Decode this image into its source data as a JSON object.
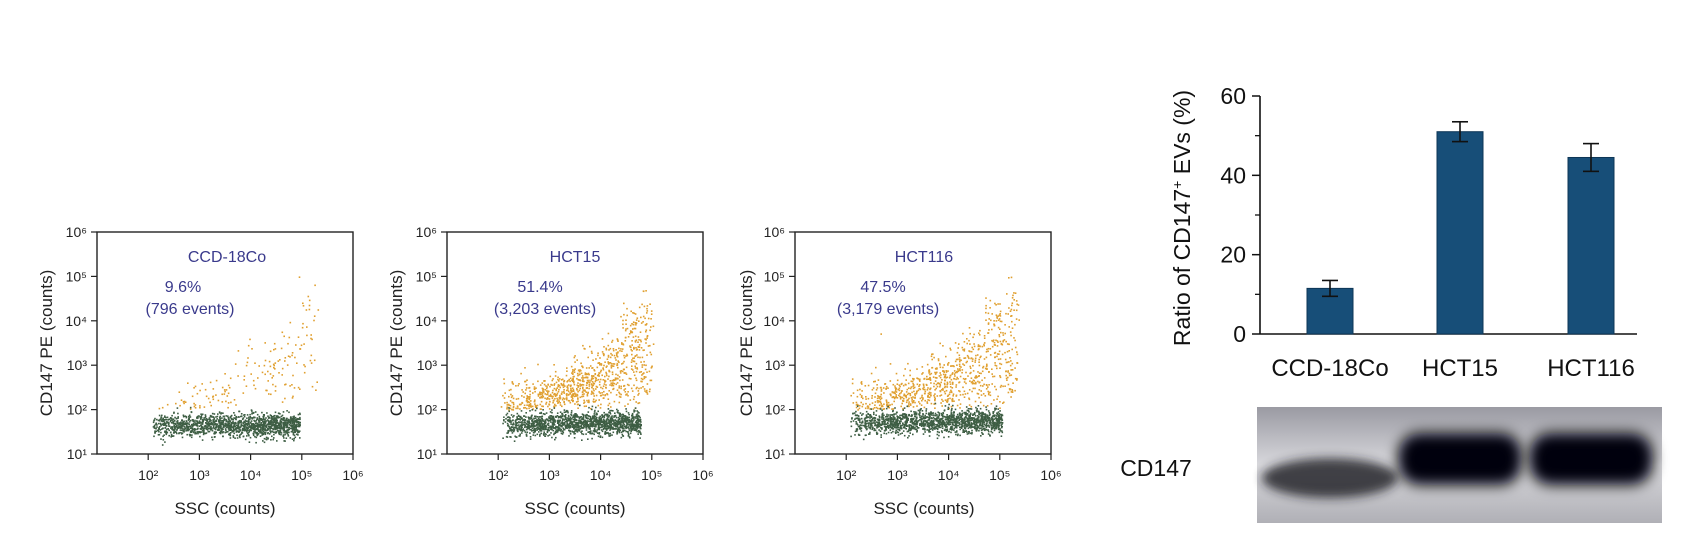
{
  "chart_data": [
    {
      "type": "scatter",
      "title": "CCD-18Co",
      "xlabel": "SSC (counts)",
      "ylabel": "CD147 PE (counts)",
      "xscale": "log",
      "yscale": "log",
      "xlim": [
        10,
        1000000
      ],
      "ylim": [
        10,
        1000000
      ],
      "x_ticks": [
        "10²",
        "10³",
        "10⁴",
        "10⁵",
        "10⁶"
      ],
      "y_ticks": [
        "10¹",
        "10²",
        "10³",
        "10⁴",
        "10⁵",
        "10⁶"
      ],
      "percent_label": "9.6%",
      "events_label": "(796 events)",
      "colors": {
        "positive": "#e0a030",
        "negative": "#3e5e44",
        "label": "#3a3a8c"
      },
      "populations": {
        "negative": {
          "x_range": [
            120,
            90000
          ],
          "y_center": 45
        },
        "positive": {
          "x_range": [
            150,
            200000
          ],
          "y_range": [
            100,
            100000
          ],
          "fraction": 0.096
        }
      }
    },
    {
      "type": "scatter",
      "title": "HCT15",
      "xlabel": "SSC (counts)",
      "ylabel": "CD147 PE (counts)",
      "xscale": "log",
      "yscale": "log",
      "xlim": [
        10,
        1000000
      ],
      "ylim": [
        10,
        1000000
      ],
      "x_ticks": [
        "10²",
        "10³",
        "10⁴",
        "10⁵",
        "10⁶"
      ],
      "y_ticks": [
        "10¹",
        "10²",
        "10³",
        "10⁴",
        "10⁵",
        "10⁶"
      ],
      "percent_label": "51.4%",
      "events_label": "(3,203 events)",
      "colors": {
        "positive": "#e0a030",
        "negative": "#3e5e44",
        "label": "#3a3a8c"
      },
      "populations": {
        "negative": {
          "x_range": [
            120,
            60000
          ],
          "y_center": 50
        },
        "positive": {
          "x_range": [
            120,
            90000
          ],
          "y_range": [
            100,
            50000
          ],
          "fraction": 0.514
        }
      }
    },
    {
      "type": "scatter",
      "title": "HCT116",
      "xlabel": "SSC (counts)",
      "ylabel": "CD147 PE (counts)",
      "xscale": "log",
      "yscale": "log",
      "xlim": [
        10,
        1000000
      ],
      "ylim": [
        10,
        1000000
      ],
      "x_ticks": [
        "10²",
        "10³",
        "10⁴",
        "10⁵",
        "10⁶"
      ],
      "y_ticks": [
        "10¹",
        "10²",
        "10³",
        "10⁴",
        "10⁵",
        "10⁶"
      ],
      "percent_label": "47.5%",
      "events_label": "(3,179 events)",
      "colors": {
        "positive": "#e0a030",
        "negative": "#3e5e44",
        "label": "#3a3a8c"
      },
      "populations": {
        "negative": {
          "x_range": [
            120,
            110000
          ],
          "y_center": 55
        },
        "positive": {
          "x_range": [
            120,
            200000
          ],
          "y_range": [
            100,
            100000
          ],
          "fraction": 0.475
        }
      }
    },
    {
      "type": "bar",
      "categories": [
        "CCD-18Co",
        "HCT15",
        "HCT116"
      ],
      "values": [
        11.5,
        51,
        44.5
      ],
      "errors": [
        2,
        2.5,
        3.5
      ],
      "ylabel_prefix": "Ratio of CD147",
      "ylabel_sup": "+",
      "ylabel_suffix": " EVs (%)",
      "ylim": [
        0,
        60
      ],
      "y_ticks": [
        0,
        20,
        40,
        60
      ],
      "colors": {
        "bar": "#174e78"
      }
    }
  ],
  "western_blot": {
    "label": "CD147",
    "band_intensity": [
      0.55,
      1.0,
      1.0
    ]
  }
}
